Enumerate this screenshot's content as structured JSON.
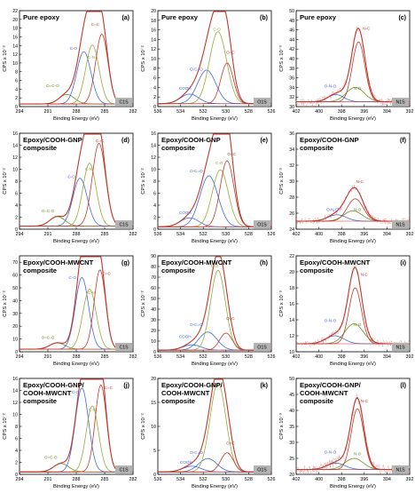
{
  "chart_data": [
    {
      "type": "line",
      "panel": "(a)",
      "title": "Pure epoxy",
      "xlabel": "Binding Energy (eV)",
      "ylabel": "CPS x 10⁻²",
      "xlim": [
        294,
        282
      ],
      "xticks": [
        "294",
        "291",
        "288",
        "285",
        "282"
      ],
      "ylim": [
        0,
        22
      ],
      "yticks": [
        "0",
        "2",
        "4",
        "6",
        "8",
        "10",
        "12",
        "14",
        "16",
        "18",
        "20",
        "22"
      ],
      "region": "C1S",
      "series": [
        {
          "name": "O=C-O",
          "center": 289.0,
          "height": 2.2,
          "width": 0.8,
          "color": "#6b8e23",
          "label_color": "#6b8e23",
          "label_pos": [
            290.5,
            4.5
          ]
        },
        {
          "name": "C-O",
          "center": 287.2,
          "height": 12.0,
          "width": 0.75,
          "color": "#4169e1",
          "label_color": "#4169e1",
          "label_pos": [
            288.3,
            13.0
          ]
        },
        {
          "name": "C-N",
          "center": 286.3,
          "height": 13.5,
          "width": 0.7,
          "color": "#9aa83a",
          "label_color": "#9aa83a",
          "label_pos": [
            286.4,
            11.0
          ]
        },
        {
          "name": "C=C",
          "center": 285.3,
          "height": 16.0,
          "width": 0.65,
          "color": "#c0392b",
          "label_color": "#c0392b",
          "label_pos": [
            286.0,
            18.5
          ]
        }
      ],
      "base": 0.6
    },
    {
      "type": "line",
      "panel": "(b)",
      "title": "Pure epoxy",
      "xlabel": "Binding Energy (eV)",
      "ylabel": "CPS x 10⁻²",
      "xlim": [
        536,
        526
      ],
      "xticks": [
        "536",
        "534",
        "532",
        "530",
        "528",
        "526"
      ],
      "ylim": [
        0,
        20
      ],
      "yticks": [
        "0",
        "2",
        "4",
        "6",
        "8",
        "10",
        "12",
        "14",
        "16",
        "18",
        "20"
      ],
      "region": "O1S",
      "series": [
        {
          "name": "COOH",
          "center": 533.2,
          "height": 2.0,
          "width": 0.8,
          "color": "#4169e1",
          "label_color": "#4169e1",
          "label_pos": [
            533.6,
            3.5
          ]
        },
        {
          "name": "O-C=O",
          "center": 531.7,
          "height": 7.0,
          "width": 0.8,
          "color": "#4169e1",
          "label_color": "#4169e1",
          "label_pos": [
            532.6,
            7.5
          ]
        },
        {
          "name": "C-O",
          "center": 530.7,
          "height": 15.0,
          "width": 0.75,
          "color": "#9aa83a",
          "label_color": "#9aa83a",
          "label_pos": [
            530.8,
            15.8
          ]
        },
        {
          "name": "O=C",
          "center": 529.9,
          "height": 8.5,
          "width": 0.55,
          "color": "#c0392b",
          "label_color": "#c0392b",
          "label_pos": [
            529.6,
            11.0
          ]
        }
      ],
      "base": 0.6
    },
    {
      "type": "line",
      "panel": "(c)",
      "title": "Pure epoxy",
      "xlabel": "Binding Energy (eV)",
      "ylabel": "CPS x 10⁻³",
      "xlim": [
        402,
        392
      ],
      "xticks": [
        "402",
        "400",
        "398",
        "396",
        "394",
        "392"
      ],
      "ylim": [
        30,
        50
      ],
      "yticks": [
        "30",
        "32",
        "34",
        "36",
        "38",
        "40",
        "42",
        "44",
        "46",
        "48",
        "50"
      ],
      "region": "N1S",
      "series": [
        {
          "name": "O-N-O",
          "center": 398.5,
          "height": 1.5,
          "width": 0.7,
          "color": "#4169e1",
          "label_color": "#4169e1",
          "label_pos": [
            399.0,
            34.0
          ]
        },
        {
          "name": "N-O",
          "center": 396.8,
          "height": 3.0,
          "width": 0.8,
          "color": "#6b8e23",
          "label_color": "#6b8e23",
          "label_pos": [
            396.6,
            33.5
          ]
        },
        {
          "name": "N-C",
          "center": 396.5,
          "height": 12.5,
          "width": 0.55,
          "color": "#c0392b",
          "label_color": "#c0392b",
          "label_pos": [
            395.8,
            46.0
          ]
        }
      ],
      "base": 31.0,
      "noise": 0.8
    },
    {
      "type": "line",
      "panel": "(d)",
      "title": "Epoxy/COOH-GNP composite",
      "xlabel": "Binding Energy (eV)",
      "ylabel": "CPS x 10⁻²",
      "xlim": [
        294,
        282
      ],
      "xticks": [
        "294",
        "291",
        "288",
        "285",
        "282"
      ],
      "ylim": [
        0,
        16
      ],
      "yticks": [
        "0",
        "2",
        "4",
        "6",
        "8",
        "10",
        "12",
        "14",
        "16"
      ],
      "region": "C1S",
      "series": [
        {
          "name": "O=C-O",
          "center": 290.0,
          "height": 1.6,
          "width": 0.8,
          "color": "#6b8e23",
          "label_color": "#6b8e23",
          "label_pos": [
            291.0,
            2.8
          ]
        },
        {
          "name": "C-O",
          "center": 287.6,
          "height": 8.0,
          "width": 0.75,
          "color": "#4169e1",
          "label_color": "#4169e1",
          "label_pos": [
            288.5,
            8.5
          ]
        },
        {
          "name": "C-N",
          "center": 286.6,
          "height": 10.5,
          "width": 0.7,
          "color": "#9aa83a",
          "label_color": "#9aa83a",
          "label_pos": [
            286.7,
            9.8
          ]
        },
        {
          "name": "C=C",
          "center": 285.6,
          "height": 13.8,
          "width": 0.7,
          "color": "#c0392b",
          "label_color": "#c0392b",
          "label_pos": [
            285.5,
            14.5
          ]
        }
      ],
      "base": 0.5
    },
    {
      "type": "line",
      "panel": "(e)",
      "title": "Epoxy/COOH-GNP composite",
      "xlabel": "Binding Energy (eV)",
      "ylabel": "CPS x 10⁻²",
      "xlim": [
        536,
        526
      ],
      "xticks": [
        "536",
        "534",
        "532",
        "530",
        "528",
        "526"
      ],
      "ylim": [
        0,
        16
      ],
      "yticks": [
        "0",
        "2",
        "4",
        "6",
        "8",
        "10",
        "12",
        "14",
        "16"
      ],
      "region": "O1S",
      "series": [
        {
          "name": "COOH",
          "center": 533.2,
          "height": 1.5,
          "width": 0.8,
          "color": "#4169e1",
          "label_color": "#4169e1",
          "label_pos": [
            533.6,
            2.5
          ]
        },
        {
          "name": "O-C=O",
          "center": 531.5,
          "height": 8.5,
          "width": 0.8,
          "color": "#4169e1",
          "label_color": "#4169e1",
          "label_pos": [
            532.6,
            9.5
          ]
        },
        {
          "name": "C-O",
          "center": 530.5,
          "height": 9.5,
          "width": 0.7,
          "color": "#9aa83a",
          "label_color": "#9aa83a",
          "label_pos": [
            530.6,
            10.8
          ]
        },
        {
          "name": "O=C",
          "center": 529.9,
          "height": 11.0,
          "width": 0.6,
          "color": "#c0392b",
          "label_color": "#c0392b",
          "label_pos": [
            529.5,
            12.3
          ]
        }
      ],
      "base": 0.4
    },
    {
      "type": "line",
      "panel": "(f)",
      "title": "Epoxy/COOH-GNP composite",
      "xlabel": "Binding Energy (eV)",
      "ylabel": "CPS x 10⁻³",
      "xlim": [
        402,
        392
      ],
      "xticks": [
        "402",
        "400",
        "398",
        "396",
        "394",
        "392"
      ],
      "ylim": [
        24,
        36
      ],
      "yticks": [
        "24",
        "26",
        "28",
        "30",
        "32",
        "34",
        "36"
      ],
      "region": "N1S",
      "series": [
        {
          "name": "O-N-O",
          "center": 398.4,
          "height": 0.8,
          "width": 0.8,
          "color": "#4169e1",
          "label_color": "#4169e1",
          "label_pos": [
            398.8,
            26.3
          ]
        },
        {
          "name": "N-O",
          "center": 397.0,
          "height": 1.3,
          "width": 0.8,
          "color": "#6b8e23",
          "label_color": "#6b8e23",
          "label_pos": [
            396.6,
            26.3
          ]
        },
        {
          "name": "N-C",
          "center": 396.8,
          "height": 2.8,
          "width": 0.7,
          "color": "#c0392b",
          "label_color": "#c0392b",
          "label_pos": [
            396.4,
            29.8
          ]
        }
      ],
      "base": 25.0,
      "noise": 0.7
    },
    {
      "type": "line",
      "panel": "(g)",
      "title": "Epoxy/COOH-MWCNT composite",
      "xlabel": "Binding Energy (eV)",
      "ylabel": "CPS x 10⁻²",
      "xlim": [
        294,
        282
      ],
      "xticks": [
        "294",
        "291",
        "288",
        "285",
        "282"
      ],
      "ylim": [
        0,
        75
      ],
      "yticks": [
        "0",
        "10",
        "20",
        "30",
        "40",
        "50",
        "60",
        "70"
      ],
      "region": "C1S",
      "series": [
        {
          "name": "O=C-O",
          "center": 290.0,
          "height": 5.0,
          "width": 0.8,
          "color": "#6b8e23",
          "label_color": "#6b8e23",
          "label_pos": [
            291.0,
            10.0
          ]
        },
        {
          "name": "C-O",
          "center": 287.4,
          "height": 56.0,
          "width": 0.7,
          "color": "#4169e1",
          "label_color": "#4169e1",
          "label_pos": [
            288.4,
            57.0
          ]
        },
        {
          "name": "C-N",
          "center": 286.6,
          "height": 47.0,
          "width": 0.7,
          "color": "#9aa83a",
          "label_color": "#9aa83a",
          "label_pos": [
            286.4,
            45.0
          ]
        },
        {
          "name": "C=C",
          "center": 285.5,
          "height": 62.0,
          "width": 0.6,
          "color": "#c0392b",
          "label_color": "#c0392b",
          "label_pos": [
            284.8,
            60.0
          ]
        }
      ],
      "base": 2.0
    },
    {
      "type": "line",
      "panel": "(h)",
      "title": "Epoxy/COOH-MWCNT composite",
      "xlabel": "Binding Energy (eV)",
      "ylabel": "CPS x 10⁻²",
      "xlim": [
        536,
        526
      ],
      "xticks": [
        "536",
        "534",
        "532",
        "530",
        "528",
        "526"
      ],
      "ylim": [
        0,
        90
      ],
      "yticks": [
        "0",
        "10",
        "20",
        "30",
        "40",
        "50",
        "60",
        "70",
        "80",
        "90"
      ],
      "region": "O1S",
      "series": [
        {
          "name": "COOH",
          "center": 533.0,
          "height": 5.0,
          "width": 0.8,
          "color": "#4169e1",
          "label_color": "#4169e1",
          "label_pos": [
            533.6,
            13.0
          ]
        },
        {
          "name": "O-C=O",
          "center": 531.6,
          "height": 17.0,
          "width": 0.8,
          "color": "#4169e1",
          "label_color": "#4169e1",
          "label_pos": [
            532.6,
            24.0
          ]
        },
        {
          "name": "C-O",
          "center": 530.7,
          "height": 75.0,
          "width": 0.65,
          "color": "#9aa83a",
          "label_color": "#9aa83a",
          "label_pos": [
            531.0,
            79.0
          ]
        },
        {
          "name": "O=C",
          "center": 530.0,
          "height": 16.0,
          "width": 0.55,
          "color": "#c0392b",
          "label_color": "#c0392b",
          "label_pos": [
            529.6,
            30.0
          ]
        }
      ],
      "base": 1.5
    },
    {
      "type": "line",
      "panel": "(i)",
      "title": "Epoxy/COOH-MWCNT composite",
      "xlabel": "Binding Energy (eV)",
      "ylabel": "CPS x 10⁻³",
      "xlim": [
        402,
        392
      ],
      "xticks": [
        "402",
        "400",
        "398",
        "396",
        "394",
        "392"
      ],
      "ylim": [
        10,
        22
      ],
      "yticks": [
        "10",
        "12",
        "14",
        "16",
        "18",
        "20",
        "22"
      ],
      "region": "N1S",
      "series": [
        {
          "name": "O-N-O",
          "center": 398.6,
          "height": 1.0,
          "width": 0.8,
          "color": "#4169e1",
          "label_color": "#4169e1",
          "label_pos": [
            399.0,
            13.7
          ]
        },
        {
          "name": "N-O",
          "center": 396.9,
          "height": 2.5,
          "width": 0.8,
          "color": "#6b8e23",
          "label_color": "#6b8e23",
          "label_pos": [
            396.6,
            13.2
          ]
        },
        {
          "name": "N-C",
          "center": 396.8,
          "height": 7.0,
          "width": 0.55,
          "color": "#c0392b",
          "label_color": "#c0392b",
          "label_pos": [
            396.0,
            19.5
          ]
        }
      ],
      "base": 11.0,
      "noise": 0.7
    },
    {
      "type": "line",
      "panel": "(j)",
      "title": "Epoxy/COOH-GNP/ COOH-MWCNT composite",
      "xlabel": "Binding Energy (eV)",
      "ylabel": "CPS x 10⁻²",
      "xlim": [
        294,
        282
      ],
      "xticks": [
        "294",
        "291",
        "288",
        "285",
        "282"
      ],
      "ylim": [
        0,
        16
      ],
      "yticks": [
        "0",
        "2",
        "4",
        "6",
        "8",
        "10",
        "12",
        "14",
        "16"
      ],
      "region": "C1S",
      "series": [
        {
          "name": "O=C-O",
          "center": 289.6,
          "height": 1.4,
          "width": 0.8,
          "color": "#6b8e23",
          "label_color": "#6b8e23",
          "label_pos": [
            290.7,
            2.6
          ]
        },
        {
          "name": "C-O",
          "center": 287.4,
          "height": 14.0,
          "width": 0.7,
          "color": "#4169e1",
          "label_color": "#4169e1",
          "label_pos": [
            288.1,
            13.5
          ]
        },
        {
          "name": "C-N",
          "center": 286.3,
          "height": 11.0,
          "width": 0.65,
          "color": "#9aa83a",
          "label_color": "#9aa83a",
          "label_pos": [
            286.3,
            10.5
          ]
        },
        {
          "name": "C=C",
          "center": 285.4,
          "height": 14.5,
          "width": 0.6,
          "color": "#c0392b",
          "label_color": "#c0392b",
          "label_pos": [
            284.6,
            14.2
          ]
        }
      ],
      "base": 0.4
    },
    {
      "type": "line",
      "panel": "(k)",
      "title": "Epoxy/COOH-GNP/ COOH-MWCNT composite",
      "xlabel": "Binding Energy (eV)",
      "ylabel": "CPS x 10⁻²",
      "xlim": [
        536,
        526
      ],
      "xticks": [
        "536",
        "534",
        "532",
        "530",
        "528",
        "526"
      ],
      "ylim": [
        0,
        20
      ],
      "yticks": [
        "0",
        "5",
        "10",
        "15",
        "20"
      ],
      "region": "O1S",
      "series": [
        {
          "name": "COOH",
          "center": 533.0,
          "height": 1.2,
          "width": 0.8,
          "color": "#4169e1",
          "label_color": "#4169e1",
          "label_pos": [
            533.5,
            2.2
          ]
        },
        {
          "name": "O-C=O",
          "center": 531.6,
          "height": 2.8,
          "width": 0.8,
          "color": "#4169e1",
          "label_color": "#4169e1",
          "label_pos": [
            532.6,
            4.3
          ]
        },
        {
          "name": "C-O",
          "center": 530.7,
          "height": 18.5,
          "width": 0.7,
          "color": "#9aa83a",
          "label_color": "#9aa83a",
          "label_pos": [
            531.0,
            18.2
          ]
        },
        {
          "name": "O=C",
          "center": 529.9,
          "height": 4.0,
          "width": 0.55,
          "color": "#c0392b",
          "label_color": "#c0392b",
          "label_pos": [
            529.6,
            6.2
          ]
        }
      ],
      "base": 0.5
    },
    {
      "type": "line",
      "panel": "(l)",
      "title": "Epoxy/COOH-GNP/ COOH-MWCNT composite",
      "xlabel": "Binding Energy (eV)",
      "ylabel": "CPS x 10⁻³",
      "xlim": [
        402,
        392
      ],
      "xticks": [
        "402",
        "400",
        "398",
        "396",
        "394",
        "392"
      ],
      "ylim": [
        20,
        50
      ],
      "yticks": [
        "20",
        "25",
        "30",
        "35",
        "40",
        "45",
        "50"
      ],
      "region": "N1S",
      "series": [
        {
          "name": "O-N-O",
          "center": 398.5,
          "height": 2.0,
          "width": 0.8,
          "color": "#4169e1",
          "label_color": "#4169e1",
          "label_pos": [
            399.0,
            26.5
          ]
        },
        {
          "name": "N-O",
          "center": 396.9,
          "height": 3.5,
          "width": 0.8,
          "color": "#6b8e23",
          "label_color": "#6b8e23",
          "label_pos": [
            396.6,
            26.0
          ]
        },
        {
          "name": "N-C",
          "center": 396.6,
          "height": 19.0,
          "width": 0.55,
          "color": "#c0392b",
          "label_color": "#c0392b",
          "label_pos": [
            396.0,
            42.5
          ]
        }
      ],
      "base": 21.5,
      "noise": 1.0
    }
  ],
  "colors": {
    "envelope": "#c0392b",
    "raw": "#c0392b",
    "baseline": "#c0392b",
    "region_badge": "#b3b3b3",
    "axis": "#000000"
  }
}
